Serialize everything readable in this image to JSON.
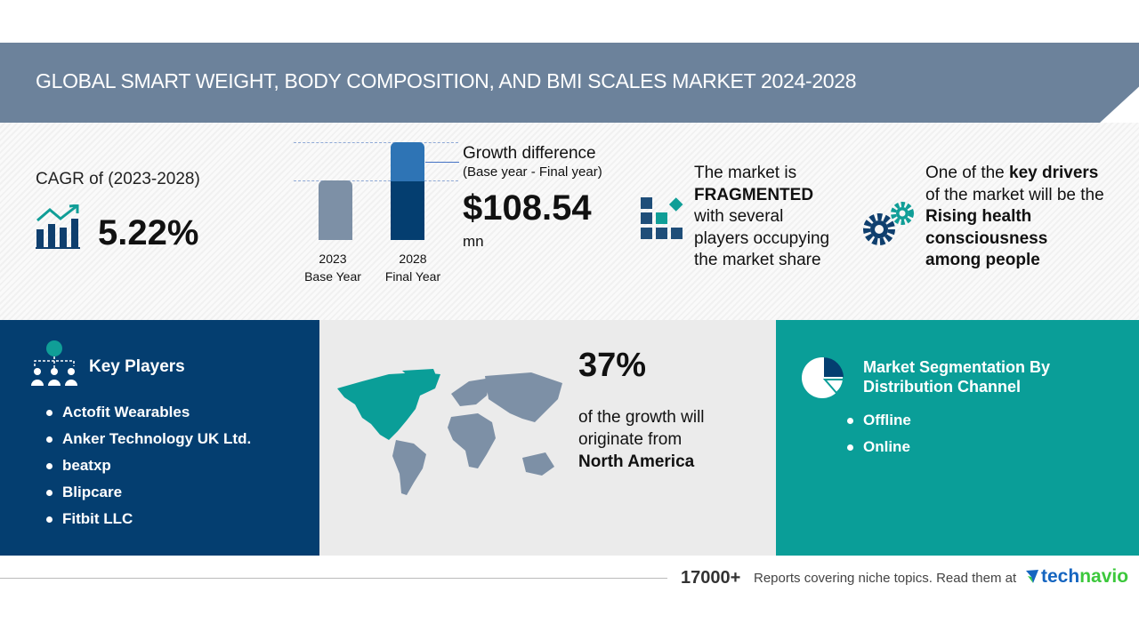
{
  "title": "GLOBAL SMART WEIGHT, BODY COMPOSITION, AND BMI SCALES MARKET 2024-2028",
  "cagr": {
    "label": "CAGR of (2023-2028)",
    "value": "5.22%"
  },
  "growth": {
    "base_year": "2023",
    "base_label": "Base Year",
    "final_year": "2028",
    "final_label": "Final Year",
    "title": "Growth difference",
    "subtitle": "(Base year - Final year)",
    "value": "$108.54",
    "unit": "mn"
  },
  "market": {
    "l1": "The market is",
    "l2": "FRAGMENTED",
    "l3": "with several",
    "l4": "players occupying",
    "l5": "the market share"
  },
  "drivers": {
    "l1a": "One of the ",
    "l1b": "key drivers",
    "l2": "of the market will be the",
    "l3": "Rising health",
    "l4": "consciousness",
    "l5": "among people"
  },
  "key_players": {
    "title": "Key Players",
    "items": [
      "Actofit Wearables",
      "Anker Technology UK Ltd.",
      "beatxp",
      "Blipcare",
      "Fitbit LLC"
    ]
  },
  "region": {
    "percent": "37%",
    "l1": "of the growth will",
    "l2": "originate from",
    "name": "North America"
  },
  "segmentation": {
    "title1": "Market Segmentation By",
    "title2": "Distribution Channel",
    "items": [
      "Offline",
      "Online"
    ]
  },
  "footer": {
    "count": "17000+",
    "text": "Reports covering niche topics. Read them at",
    "brand_a": "tech",
    "brand_b": "navio"
  },
  "colors": {
    "header": "#6c829b",
    "dark_blue": "#043e70",
    "teal": "#0a9e98",
    "grey": "#ebebeb"
  }
}
